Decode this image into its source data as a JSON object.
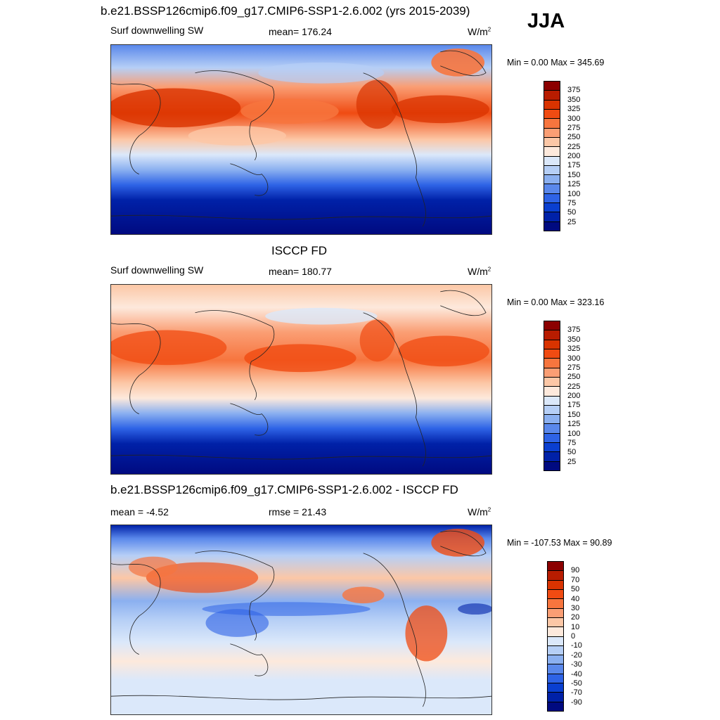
{
  "season": "JJA",
  "panels": [
    {
      "title": "b.e21.BSSP126cmip6.f09_g17.CMIP6-SSP1-2.6.002 (yrs 2015-2039)",
      "left_label": "Surf downwelling SW",
      "center_label": "mean= 176.24",
      "units": "W/m",
      "units_sup": "2",
      "minmax": "Min =   0.00 Max = 345.69",
      "type": "absolute"
    },
    {
      "title": "ISCCP FD",
      "left_label": "Surf downwelling SW",
      "center_label": "mean= 180.77",
      "units": "W/m",
      "units_sup": "2",
      "minmax": "Min =   0.00 Max = 323.16",
      "type": "absolute"
    },
    {
      "title": "b.e21.BSSP126cmip6.f09_g17.CMIP6-SSP1-2.6.002 - ISCCP FD",
      "left_label": "mean =  -4.52",
      "center_label": "rmse =  21.43",
      "units": "W/m",
      "units_sup": "2",
      "minmax": "Min = -107.53 Max =  90.89",
      "type": "difference"
    }
  ],
  "colorbars": {
    "absolute": {
      "labels": [
        "375",
        "350",
        "325",
        "300",
        "275",
        "250",
        "225",
        "200",
        "175",
        "150",
        "125",
        "100",
        "75",
        "50",
        "25"
      ],
      "colors": [
        "#8b0000",
        "#b81c00",
        "#d93300",
        "#f04b12",
        "#f7753e",
        "#fa9e74",
        "#fcc7a6",
        "#fde9dc",
        "#dbe8fa",
        "#b6cff6",
        "#8bb0f0",
        "#5a88eb",
        "#2e63e6",
        "#0a3fd0",
        "#0021a8",
        "#000a80"
      ]
    },
    "difference": {
      "labels": [
        "90",
        "70",
        "50",
        "40",
        "30",
        "20",
        "10",
        "0",
        "-10",
        "-20",
        "-30",
        "-40",
        "-50",
        "-70",
        "-90"
      ],
      "colors": [
        "#8b0000",
        "#b81c00",
        "#d93300",
        "#f04b12",
        "#f7753e",
        "#fa9e74",
        "#fcc7a6",
        "#fde9dc",
        "#dbe8fa",
        "#b6cff6",
        "#8bb0f0",
        "#5a88eb",
        "#2e63e6",
        "#0a3fd0",
        "#0021a8",
        "#000a80"
      ]
    }
  }
}
